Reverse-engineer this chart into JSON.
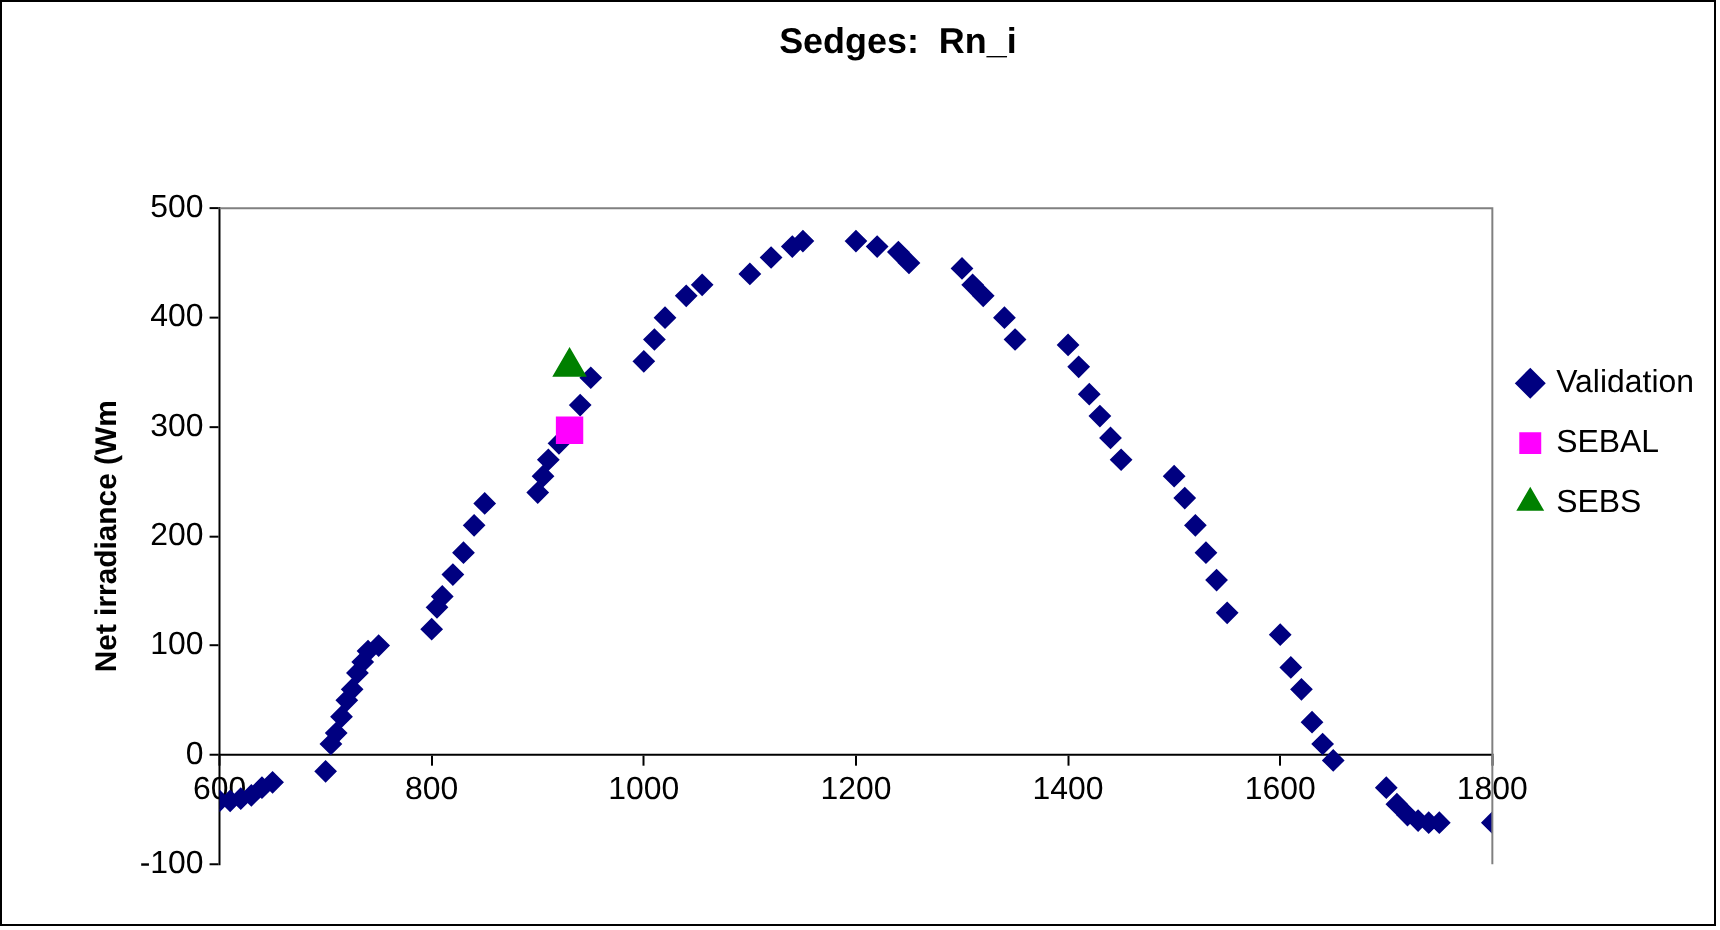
{
  "chart_data": {
    "type": "scatter",
    "title": "Sedges:  Rn_i",
    "ylabel": "Net irradiance (Wm",
    "x": [
      600,
      610,
      620,
      630,
      640,
      650,
      700,
      705,
      710,
      715,
      720,
      725,
      730,
      735,
      740,
      750,
      800,
      805,
      810,
      820,
      830,
      840,
      850,
      900,
      905,
      910,
      920,
      940,
      950,
      1000,
      1010,
      1020,
      1040,
      1055,
      1100,
      1120,
      1140,
      1150,
      1200,
      1220,
      1240,
      1250,
      1300,
      1310,
      1320,
      1340,
      1350,
      1400,
      1410,
      1420,
      1430,
      1440,
      1450,
      1500,
      1510,
      1520,
      1530,
      1540,
      1550,
      1600,
      1610,
      1620,
      1630,
      1640,
      1650,
      1700,
      1710,
      1720,
      1730,
      1740,
      1750,
      1800
    ],
    "series": [
      {
        "name": "Validation",
        "color": "#000080",
        "marker": "diamond",
        "values": [
          -42,
          -42,
          -40,
          -37,
          -30,
          -25,
          -15,
          10,
          20,
          35,
          50,
          60,
          75,
          85,
          95,
          100,
          115,
          135,
          145,
          165,
          185,
          210,
          230,
          240,
          255,
          270,
          285,
          320,
          345,
          360,
          380,
          400,
          420,
          430,
          440,
          455,
          465,
          470,
          470,
          465,
          460,
          450,
          445,
          430,
          420,
          400,
          380,
          375,
          355,
          330,
          310,
          290,
          270,
          255,
          235,
          210,
          185,
          160,
          130,
          110,
          80,
          60,
          30,
          10,
          -5,
          -30,
          -45,
          -55,
          -60,
          -62,
          -62,
          -62
        ]
      },
      {
        "name": "SEBAL",
        "color": "#ff00ff",
        "marker": "square",
        "x": [
          930
        ],
        "values": [
          297
        ]
      },
      {
        "name": "SEBS",
        "color": "#008000",
        "marker": "triangle",
        "x": [
          930
        ],
        "values": [
          355
        ]
      }
    ],
    "xlim": [
      600,
      1800
    ],
    "xticks": [
      600,
      800,
      1000,
      1200,
      1400,
      1600,
      1800
    ],
    "ylim": [
      -100,
      500
    ],
    "yticks": [
      -100,
      0,
      100,
      200,
      300,
      400,
      500
    ],
    "grid": false,
    "legend": "right"
  }
}
